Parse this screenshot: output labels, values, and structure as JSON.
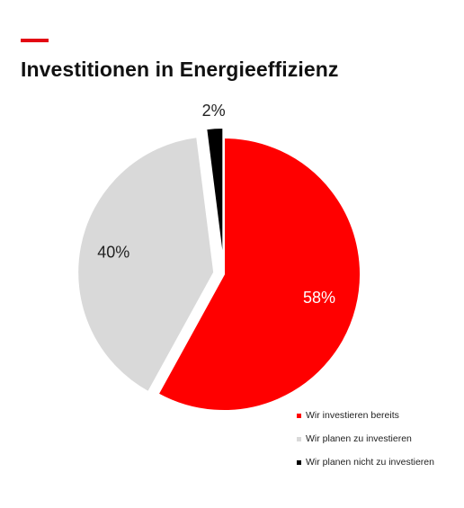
{
  "page": {
    "title": "Investitionen in Energieeffizienz",
    "accent_color": "#e30613"
  },
  "chart_data": {
    "type": "pie",
    "title": "Investitionen in Energieeffizienz",
    "start_angle_deg": 0,
    "direction": "clockwise",
    "slices": [
      {
        "label": "Wir investieren bereits",
        "value": 58,
        "display": "58%",
        "color": "#ff0000",
        "label_color": "#ffffff",
        "exploded": false
      },
      {
        "label": "Wir planen zu investieren",
        "value": 40,
        "display": "40%",
        "color": "#d9d9d9",
        "label_color": "#222222",
        "exploded": true
      },
      {
        "label": "Wir planen nicht zu investieren",
        "value": 2,
        "display": "2%",
        "color": "#000000",
        "label_color": "#222222",
        "exploded": true
      }
    ],
    "legend": "bottom-right"
  }
}
